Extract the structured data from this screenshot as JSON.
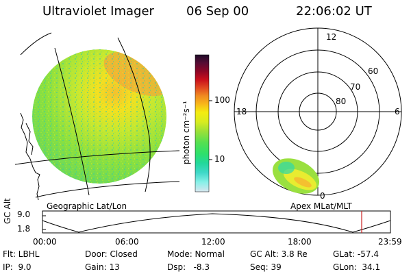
{
  "header": {
    "instrument": "Ultraviolet Imager",
    "date": "06 Sep 00",
    "time": "22:06:02 UT"
  },
  "left_panel": {
    "label": "Geographic Lat/Lon"
  },
  "colorbar": {
    "unit_label": "photon cm⁻²s⁻¹",
    "tick_labels": [
      "100",
      "10"
    ],
    "colors": [
      "#d8e6ef",
      "#87f0e8",
      "#3fd8c8",
      "#22d89a",
      "#2ee06a",
      "#55e050",
      "#9ae038",
      "#d8ec20",
      "#f4ec10",
      "#f8b81a",
      "#f08a20",
      "#e04820",
      "#c80e1c",
      "#8c0626",
      "#560c34",
      "#1e0c28"
    ]
  },
  "polar_panel": {
    "label": "Apex MLat/MLT",
    "mlt_labels": [
      "12",
      "18",
      "6",
      "0"
    ],
    "lat_labels": [
      "60",
      "70",
      "80"
    ]
  },
  "altitude_plot": {
    "ylabel": "GC Alt",
    "ytick_labels": [
      "9.0",
      "1.8"
    ],
    "xtick_labels": [
      "00:00",
      "06:00",
      "12:00",
      "18:00",
      "23:59"
    ],
    "current_time_color": "#cc2020"
  },
  "status": {
    "row1": {
      "flt": "Flt: LBHL",
      "door": "Door: Closed",
      "mode": "Mode: Normal",
      "gc_alt": "GC Alt: 3.8 Re",
      "glat": "GLat: -57.4"
    },
    "row2": {
      "ip": "IP:  9.0",
      "gain": "Gain: 13",
      "dsp": "Dsp:   -8.3",
      "seq": "Seq: 39",
      "glon": "GLon:  34.1"
    }
  }
}
